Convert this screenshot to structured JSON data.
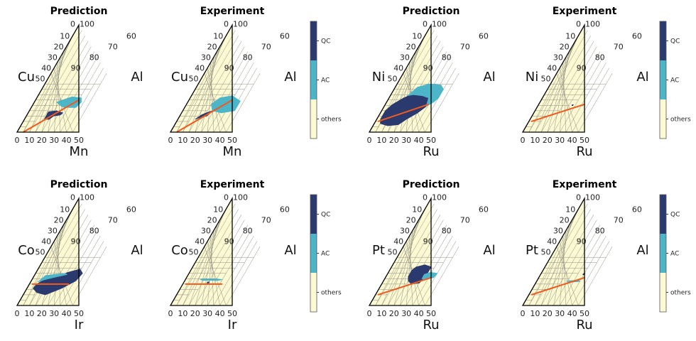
{
  "colors": {
    "background": "#fdf9d2",
    "QC": "#2a3a6e",
    "AC": "#4cb5c8",
    "others": "#fdf9d2",
    "line": "#f05a1e",
    "grid": "#8f8f80"
  },
  "colorbar": {
    "labels": [
      "QC",
      "AC",
      "others"
    ]
  },
  "tick_labels": [
    "0",
    "10",
    "20",
    "30",
    "40",
    "50",
    "60",
    "70",
    "80",
    "90",
    "100"
  ],
  "chart_data": [
    {
      "type": "ternary",
      "title": "Prediction",
      "left_label": "Cu",
      "right_label": "Al",
      "bottom_label": "Mn",
      "ticks_left": [
        "10",
        "20",
        "30",
        "40",
        "50"
      ],
      "ticks_right": [
        "60",
        "70",
        "80",
        "90",
        "100"
      ],
      "ticks_bottom": [
        "0",
        "10",
        "20",
        "30",
        "40",
        "50"
      ],
      "grid_step": 5,
      "regions": [
        {
          "class": "QC",
          "points": [
            [
              16,
              38
            ],
            [
              20,
              38
            ],
            [
              22,
              35
            ],
            [
              27,
              34
            ],
            [
              28,
              32
            ],
            [
              25,
              31
            ],
            [
              22,
              30
            ],
            [
              16,
              31
            ]
          ]
        },
        {
          "class": "AC",
          "points": [
            [
              18,
              22
            ],
            [
              20,
              21
            ],
            [
              28,
              17
            ],
            [
              36,
              18
            ],
            [
              38,
              22
            ],
            [
              36,
              27
            ],
            [
              32,
              27
            ],
            [
              28,
              27
            ],
            [
              24,
              26
            ]
          ]
        }
      ],
      "line": [
        [
          5,
          50
        ],
        [
          35,
          20
        ]
      ]
    },
    {
      "type": "ternary",
      "title": "Experiment",
      "left_label": "Cu",
      "right_label": "Al",
      "bottom_label": "Mn",
      "ticks_left": [
        "10",
        "20",
        "30",
        "40",
        "50"
      ],
      "ticks_right": [
        "60",
        "70",
        "80",
        "90",
        "100"
      ],
      "ticks_bottom": [
        "0",
        "10",
        "20",
        "30",
        "40",
        "50"
      ],
      "grid_step": 5,
      "regions": [
        {
          "class": "QC",
          "points": [
            [
              14,
              38
            ],
            [
              18,
              36
            ],
            [
              22,
              35
            ],
            [
              24,
              30
            ],
            [
              20,
              32
            ],
            [
              17,
              34
            ]
          ]
        },
        {
          "class": "AC",
          "points": [
            [
              20,
              24
            ],
            [
              24,
              18
            ],
            [
              33,
              16
            ],
            [
              42,
              21
            ],
            [
              42,
              30
            ],
            [
              32,
              32
            ],
            [
              24,
              30
            ]
          ]
        }
      ],
      "line": [
        [
          5,
          50
        ],
        [
          35,
          20
        ]
      ]
    },
    {
      "type": "ternary",
      "title": "Prediction",
      "left_label": "Ni",
      "right_label": "Al",
      "bottom_label": "Ru",
      "ticks_left": [
        "10",
        "20",
        "30",
        "40",
        "50"
      ],
      "ticks_right": [
        "60",
        "70",
        "80",
        "90",
        "100"
      ],
      "ticks_bottom": [
        "0",
        "10",
        "20",
        "30",
        "40",
        "50"
      ],
      "grid_step": 5,
      "regions": [
        {
          "class": "QC",
          "points": [
            [
              3,
              38
            ],
            [
              5,
              42
            ],
            [
              12,
              44
            ],
            [
              20,
              43
            ],
            [
              24,
              38
            ],
            [
              30,
              32
            ],
            [
              34,
              26
            ],
            [
              32,
              18
            ],
            [
              26,
              15
            ],
            [
              18,
              14
            ],
            [
              12,
              18
            ],
            [
              6,
              24
            ],
            [
              3,
              30
            ]
          ]
        },
        {
          "class": "AC",
          "points": [
            [
              14,
              16
            ],
            [
              18,
              8
            ],
            [
              26,
              5
            ],
            [
              36,
              6
            ],
            [
              40,
              10
            ],
            [
              40,
              18
            ],
            [
              38,
              22
            ],
            [
              34,
              26
            ],
            [
              32,
              18
            ],
            [
              26,
              16
            ],
            [
              18,
              15
            ]
          ]
        }
      ],
      "line": [
        [
          2,
          40
        ],
        [
          35,
          24
        ]
      ]
    },
    {
      "type": "ternary",
      "title": "Experiment",
      "left_label": "Ni",
      "right_label": "Al",
      "bottom_label": "Ru",
      "ticks_left": [
        "10",
        "20",
        "30",
        "40",
        "50"
      ],
      "ticks_right": [
        "60",
        "70",
        "80",
        "90",
        "100"
      ],
      "ticks_bottom": [
        "0",
        "10",
        "20",
        "30",
        "40",
        "50"
      ],
      "grid_step": 5,
      "regions": [
        {
          "class": "QC",
          "points": [
            [
              27.3,
              24.4
            ],
            [
              28.2,
              24.4
            ],
            [
              28.2,
              25.2
            ],
            [
              27.3,
              25.2
            ]
          ]
        },
        {
          "class": "AC",
          "points": [
            [
              35.2,
              24.6
            ],
            [
              36.4,
              24.6
            ],
            [
              36.2,
              25.4
            ],
            [
              35.2,
              25.4
            ]
          ]
        }
      ],
      "line": [
        [
          2,
          40
        ],
        [
          37,
          24
        ]
      ]
    },
    {
      "type": "ternary",
      "title": "Prediction",
      "left_label": "Co",
      "right_label": "Al",
      "bottom_label": "Ir",
      "ticks_left": [
        "10",
        "20",
        "30",
        "40",
        "50"
      ],
      "ticks_right": [
        "60",
        "70",
        "80",
        "90",
        "100"
      ],
      "ticks_bottom": [
        "0",
        "10",
        "20",
        "30",
        "40",
        "50"
      ],
      "grid_step": 5,
      "regions": [
        {
          "class": "QC",
          "points": [
            [
              6,
              30
            ],
            [
              5,
              34
            ],
            [
              10,
              38
            ],
            [
              18,
              40
            ],
            [
              28,
              34
            ],
            [
              36,
              27
            ],
            [
              38,
              20
            ],
            [
              34,
              16
            ],
            [
              26,
              19
            ],
            [
              16,
              24
            ],
            [
              10,
              26
            ]
          ]
        },
        {
          "class": "AC",
          "points": [
            [
              6,
              28
            ],
            [
              9,
              22
            ],
            [
              16,
              21
            ],
            [
              24,
              20
            ],
            [
              26,
              21
            ],
            [
              16,
              24
            ],
            [
              10,
              26
            ]
          ]
        }
      ],
      "line": [
        [
          2,
          30
        ],
        [
          32,
          30
        ]
      ]
    },
    {
      "type": "ternary",
      "title": "Experiment",
      "left_label": "Co",
      "right_label": "Al",
      "bottom_label": "Ir",
      "ticks_left": [
        "10",
        "20",
        "30",
        "40",
        "50"
      ],
      "ticks_right": [
        "60",
        "70",
        "80",
        "90",
        "100"
      ],
      "ticks_bottom": [
        "0",
        "10",
        "20",
        "30",
        "40",
        "50"
      ],
      "grid_step": 5,
      "regions": [
        {
          "class": "QC",
          "points": [
            [
              19,
              28
            ],
            [
              20.5,
              28
            ],
            [
              20.5,
              29
            ],
            [
              19,
              29
            ]
          ]
        },
        {
          "class": "AC",
          "points": [
            [
              12,
              25.6
            ],
            [
              14,
              25.3
            ],
            [
              26,
              25.3
            ],
            [
              30,
              25.8
            ],
            [
              27,
              26.6
            ],
            [
              14,
              26.5
            ]
          ]
        }
      ],
      "line": [
        [
          2,
          30
        ],
        [
          32,
          30
        ]
      ]
    },
    {
      "type": "ternary",
      "title": "Prediction",
      "left_label": "Pt",
      "right_label": "Al",
      "bottom_label": "Ru",
      "ticks_left": [
        "10",
        "20",
        "30",
        "40",
        "50"
      ],
      "ticks_right": [
        "60",
        "70",
        "80",
        "90",
        "100"
      ],
      "ticks_bottom": [
        "0",
        "10",
        "20",
        "30",
        "40",
        "50"
      ],
      "grid_step": 5,
      "regions": [
        {
          "class": "QC",
          "points": [
            [
              18,
              17
            ],
            [
              20,
              14
            ],
            [
              26,
              12
            ],
            [
              32,
              14
            ],
            [
              32,
              22
            ],
            [
              30,
              29
            ],
            [
              24,
              30
            ],
            [
              20,
              27
            ],
            [
              18,
              23
            ]
          ]
        },
        {
          "class": "AC",
          "points": [
            [
              30,
              21
            ],
            [
              34,
              19
            ],
            [
              40,
              20
            ],
            [
              39,
              24
            ],
            [
              34,
              25
            ],
            [
              30,
              25
            ]
          ]
        }
      ],
      "line": [
        [
          2,
          40
        ],
        [
          37,
          24
        ]
      ]
    },
    {
      "type": "ternary",
      "title": "Experiment",
      "left_label": "Pt",
      "right_label": "Al",
      "bottom_label": "Ru",
      "ticks_left": [
        "10",
        "20",
        "30",
        "40",
        "50"
      ],
      "ticks_right": [
        "60",
        "70",
        "80",
        "90",
        "100"
      ],
      "ticks_bottom": [
        "0",
        "10",
        "20",
        "30",
        "40",
        "50"
      ],
      "grid_step": 5,
      "regions": [
        {
          "class": "QC",
          "points": [
            [
              34.2,
              20.2
            ],
            [
              35.6,
              20.2
            ],
            [
              35.6,
              21.2
            ],
            [
              34.2,
              21.2
            ]
          ]
        },
        {
          "class": "AC",
          "points": [
            [
              24,
              27.2
            ],
            [
              28,
              26.8
            ],
            [
              34,
              26.5
            ],
            [
              35,
              27.6
            ],
            [
              28,
              28.2
            ]
          ]
        }
      ],
      "line": [
        [
          2,
          40
        ],
        [
          37,
          24
        ]
      ]
    }
  ]
}
